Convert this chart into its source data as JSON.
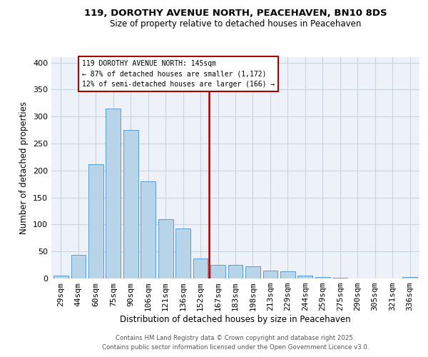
{
  "title": "119, DOROTHY AVENUE NORTH, PEACEHAVEN, BN10 8DS",
  "subtitle": "Size of property relative to detached houses in Peacehaven",
  "xlabel": "Distribution of detached houses by size in Peacehaven",
  "ylabel": "Number of detached properties",
  "bar_labels": [
    "29sqm",
    "44sqm",
    "60sqm",
    "75sqm",
    "90sqm",
    "106sqm",
    "121sqm",
    "136sqm",
    "152sqm",
    "167sqm",
    "183sqm",
    "198sqm",
    "213sqm",
    "229sqm",
    "244sqm",
    "259sqm",
    "275sqm",
    "290sqm",
    "305sqm",
    "321sqm",
    "336sqm"
  ],
  "bar_values": [
    5,
    44,
    211,
    315,
    275,
    180,
    110,
    93,
    37,
    25,
    25,
    22,
    15,
    13,
    5,
    2,
    1,
    0,
    0,
    0,
    2
  ],
  "bar_color": "#b8d4e8",
  "bar_edge_color": "#5b9bd5",
  "grid_color": "#c8d4e0",
  "background_color": "#edf2f9",
  "vline_x": 8.5,
  "vline_color": "#aa0000",
  "annotation_title": "119 DOROTHY AVENUE NORTH: 145sqm",
  "annotation_line1": "← 87% of detached houses are smaller (1,172)",
  "annotation_line2": "12% of semi-detached houses are larger (166) →",
  "annotation_box_color": "#aa0000",
  "ylim": [
    0,
    410
  ],
  "yticks": [
    0,
    50,
    100,
    150,
    200,
    250,
    300,
    350,
    400
  ],
  "footer1": "Contains HM Land Registry data © Crown copyright and database right 2025.",
  "footer2": "Contains public sector information licensed under the Open Government Licence v3.0."
}
